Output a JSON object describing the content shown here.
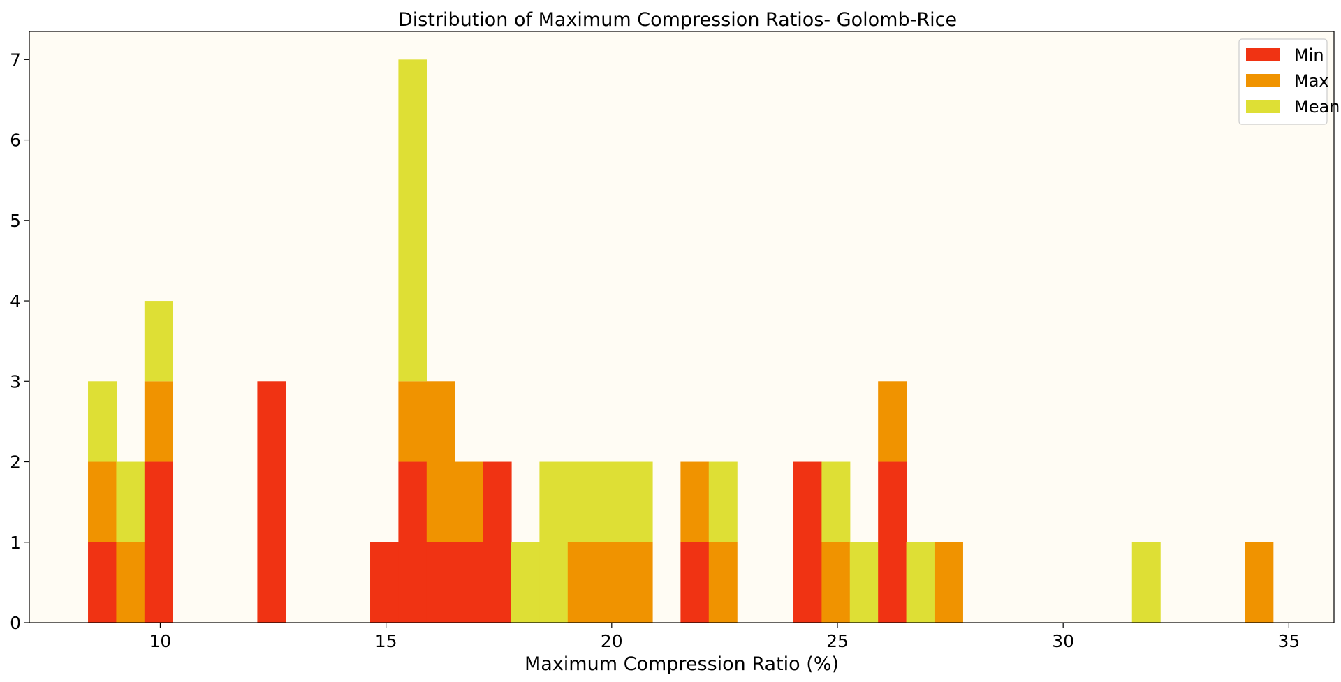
{
  "chart_data": {
    "type": "bar",
    "subtype": "stacked-histogram",
    "title": "Distribution of Maximum Compression Ratios- Golomb-Rice",
    "xlabel": "Maximum Compression Ratio (%)",
    "ylabel": "",
    "xlim": [
      7.1,
      36.0
    ],
    "ylim": [
      0,
      7.35
    ],
    "xticks": [
      10,
      15,
      20,
      25,
      30,
      35
    ],
    "yticks": [
      0,
      1,
      2,
      3,
      4,
      5,
      6,
      7
    ],
    "bin_start": 8.4,
    "bin_width": 0.625,
    "grid": false,
    "legend_position": "top-right",
    "background": "#fffcf4",
    "series": [
      {
        "name": "Min",
        "color": "#f03313",
        "values": [
          1,
          0,
          2,
          0,
          0,
          0,
          3,
          0,
          0,
          0,
          1,
          2,
          1,
          1,
          2,
          0,
          0,
          0,
          0,
          0,
          0,
          1,
          0,
          0,
          0,
          2,
          0,
          0,
          2,
          0,
          0,
          0,
          0,
          0,
          0,
          0,
          0,
          0,
          0,
          0,
          0,
          0
        ]
      },
      {
        "name": "Max",
        "color": "#f09300",
        "values": [
          1,
          1,
          1,
          0,
          0,
          0,
          0,
          0,
          0,
          0,
          0,
          1,
          2,
          1,
          0,
          0,
          0,
          1,
          1,
          1,
          0,
          1,
          1,
          0,
          0,
          0,
          1,
          0,
          1,
          0,
          1,
          0,
          0,
          0,
          0,
          0,
          0,
          0,
          0,
          0,
          0,
          1
        ]
      },
      {
        "name": "Mean",
        "color": "#dedf35",
        "values": [
          1,
          1,
          1,
          0,
          0,
          0,
          0,
          0,
          0,
          0,
          0,
          4,
          0,
          0,
          0,
          1,
          2,
          1,
          1,
          1,
          0,
          0,
          1,
          0,
          0,
          0,
          1,
          1,
          0,
          1,
          0,
          0,
          0,
          0,
          0,
          0,
          0,
          1,
          0,
          0,
          0,
          0
        ]
      }
    ]
  }
}
